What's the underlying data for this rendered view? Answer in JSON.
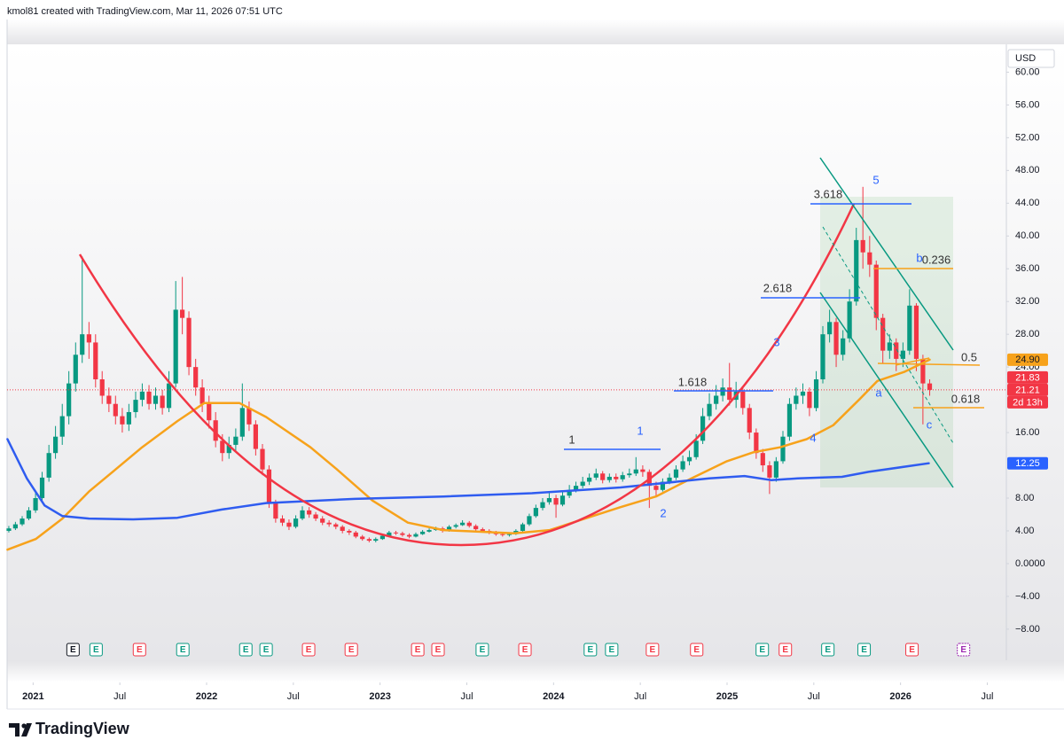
{
  "header": {
    "credit": "kmol81 created with TradingView.com, Mar 11, 2026 07:51 UTC"
  },
  "chart_data": {
    "type": "candlestick",
    "currency": "USD",
    "up_color": "#089981",
    "down_color": "#f23645",
    "xlim": [
      2020.85,
      2026.61
    ],
    "xticks": [
      {
        "value": 2021,
        "label": "2021"
      },
      {
        "value": 2021.5,
        "label": "Jul"
      },
      {
        "value": 2022,
        "label": "2022"
      },
      {
        "value": 2022.5,
        "label": "Jul"
      },
      {
        "value": 2023,
        "label": "2023"
      },
      {
        "value": 2023.5,
        "label": "Jul"
      },
      {
        "value": 2024,
        "label": "2024"
      },
      {
        "value": 2024.5,
        "label": "Jul"
      },
      {
        "value": 2025,
        "label": "2025"
      },
      {
        "value": 2025.5,
        "label": "Jul"
      },
      {
        "value": 2026,
        "label": "2026"
      },
      {
        "value": 2026.5,
        "label": "Jul"
      }
    ],
    "ylim": [
      -11.8,
      63.4
    ],
    "yticks": [
      {
        "value": 60,
        "label": "60.00"
      },
      {
        "value": 56,
        "label": "56.00"
      },
      {
        "value": 52,
        "label": "52.00"
      },
      {
        "value": 48,
        "label": "48.00"
      },
      {
        "value": 44,
        "label": "44.00"
      },
      {
        "value": 40,
        "label": "40.00"
      },
      {
        "value": 36,
        "label": "36.00"
      },
      {
        "value": 32,
        "label": "32.00"
      },
      {
        "value": 28,
        "label": "28.00"
      },
      {
        "value": 24,
        "label": "24.00"
      },
      {
        "value": 16,
        "label": "16.00"
      },
      {
        "value": 8,
        "label": "8.00"
      },
      {
        "value": 4,
        "label": "4.00"
      },
      {
        "value": 0,
        "label": "0.0000"
      },
      {
        "value": -4,
        "label": "−4.00"
      },
      {
        "value": -8,
        "label": "−8.00"
      }
    ],
    "x": [
      2020.86,
      2020.898,
      2020.937,
      2020.975,
      2021.014,
      2021.052,
      2021.091,
      2021.129,
      2021.168,
      2021.206,
      2021.245,
      2021.283,
      2021.322,
      2021.36,
      2021.398,
      2021.437,
      2021.475,
      2021.514,
      2021.552,
      2021.591,
      2021.629,
      2021.668,
      2021.706,
      2021.745,
      2021.783,
      2021.822,
      2021.86,
      2021.898,
      2021.937,
      2021.975,
      2022.014,
      2022.052,
      2022.091,
      2022.129,
      2022.168,
      2022.206,
      2022.245,
      2022.283,
      2022.322,
      2022.36,
      2022.398,
      2022.437,
      2022.475,
      2022.514,
      2022.552,
      2022.591,
      2022.629,
      2022.668,
      2022.706,
      2022.745,
      2022.783,
      2022.822,
      2022.86,
      2022.898,
      2022.937,
      2022.975,
      2023.014,
      2023.052,
      2023.091,
      2023.129,
      2023.168,
      2023.206,
      2023.245,
      2023.283,
      2023.322,
      2023.36,
      2023.398,
      2023.437,
      2023.475,
      2023.514,
      2023.552,
      2023.591,
      2023.629,
      2023.668,
      2023.706,
      2023.745,
      2023.783,
      2023.822,
      2023.86,
      2023.898,
      2023.937,
      2023.975,
      2024.014,
      2024.052,
      2024.091,
      2024.129,
      2024.168,
      2024.206,
      2024.245,
      2024.283,
      2024.322,
      2024.36,
      2024.398,
      2024.437,
      2024.475,
      2024.514,
      2024.552,
      2024.591,
      2024.629,
      2024.668,
      2024.706,
      2024.745,
      2024.783,
      2024.822,
      2024.86,
      2024.898,
      2024.937,
      2024.975,
      2025.014,
      2025.052,
      2025.091,
      2025.129,
      2025.168,
      2025.206,
      2025.245,
      2025.283,
      2025.322,
      2025.36,
      2025.398,
      2025.437,
      2025.475,
      2025.514,
      2025.552,
      2025.591,
      2025.629,
      2025.668,
      2025.706,
      2025.745,
      2025.783,
      2025.822,
      2025.86,
      2025.898,
      2025.937,
      2025.975,
      2026.014,
      2026.052,
      2026.091,
      2026.129,
      2026.168
    ],
    "open": [
      4.0,
      4.3,
      4.8,
      5.5,
      6.5,
      8.0,
      10.5,
      13.5,
      15.5,
      18.0,
      22.0,
      25.5,
      28.0,
      27.0,
      22.5,
      20.5,
      19.5,
      18.0,
      17.0,
      18.5,
      20.0,
      21.0,
      19.5,
      20.5,
      19.0,
      22.0,
      31.0,
      30.0,
      24.0,
      21.5,
      19.5,
      17.5,
      15.0,
      13.5,
      14.5,
      15.5,
      19.0,
      17.0,
      14.0,
      11.5,
      7.5,
      5.5,
      5.0,
      4.5,
      5.5,
      6.5,
      6.0,
      5.5,
      5.0,
      4.8,
      4.5,
      4.0,
      3.8,
      3.3,
      3.0,
      2.8,
      3.0,
      3.4,
      3.8,
      3.7,
      3.5,
      3.3,
      3.6,
      3.9,
      4.1,
      4.3,
      4.0,
      4.5,
      4.7,
      5.0,
      4.6,
      4.2,
      4.0,
      3.8,
      3.6,
      3.5,
      3.6,
      4.0,
      4.8,
      5.8,
      6.8,
      7.5,
      8.0,
      7.2,
      8.3,
      9.0,
      9.5,
      10.0,
      10.5,
      11.0,
      10.2,
      10.6,
      10.3,
      10.8,
      11.0,
      11.5,
      11.2,
      9.5,
      9.0,
      10.0,
      10.5,
      11.5,
      12.5,
      13.0,
      15.0,
      18.0,
      19.5,
      20.5,
      21.5,
      20.0,
      21.0,
      19.0,
      16.0,
      13.5,
      12.0,
      10.5,
      12.5,
      15.5,
      19.5,
      20.5,
      21.0,
      19.0,
      22.5,
      28.0,
      29.5,
      25.5,
      27.5,
      32.0,
      39.5,
      38.0,
      36.5,
      30.0,
      26.0,
      27.0,
      25.0,
      26.0,
      31.5,
      25.0,
      22.0
    ],
    "high": [
      4.6,
      5.1,
      5.8,
      6.9,
      8.6,
      11.2,
      14.5,
      16.8,
      19.5,
      23.5,
      27.0,
      37.5,
      29.5,
      28.0,
      23.5,
      21.5,
      20.5,
      19.0,
      19.5,
      21.0,
      22.0,
      21.8,
      21.5,
      21.2,
      23.5,
      34.5,
      35.0,
      30.8,
      25.0,
      22.5,
      20.5,
      18.5,
      15.8,
      15.5,
      16.5,
      22.0,
      19.8,
      17.5,
      14.6,
      12.0,
      7.8,
      5.9,
      5.4,
      5.9,
      7.0,
      6.9,
      6.3,
      5.8,
      5.3,
      5.0,
      4.7,
      4.2,
      4.0,
      3.5,
      3.2,
      3.2,
      3.6,
      4.0,
      4.0,
      3.9,
      3.7,
      3.8,
      4.1,
      4.3,
      4.5,
      4.5,
      4.7,
      4.9,
      5.3,
      5.2,
      4.8,
      4.4,
      4.2,
      4.0,
      3.8,
      3.8,
      4.2,
      5.0,
      6.1,
      7.2,
      8.0,
      8.6,
      8.4,
      8.8,
      9.6,
      10.0,
      10.6,
      11.0,
      11.6,
      11.3,
      11.0,
      11.0,
      11.2,
      11.6,
      13.0,
      12.0,
      11.5,
      10.0,
      10.4,
      11.0,
      12.0,
      13.2,
      13.8,
      15.8,
      19.0,
      20.8,
      21.8,
      22.6,
      24.5,
      22.2,
      21.6,
      19.5,
      16.5,
      14.0,
      12.5,
      13.0,
      16.2,
      20.2,
      21.5,
      22.0,
      21.5,
      23.5,
      29.0,
      31.0,
      30.0,
      28.5,
      33.5,
      41.0,
      46.0,
      40.0,
      37.0,
      30.5,
      28.0,
      27.5,
      27.0,
      33.5,
      31.8,
      25.5,
      22.5
    ],
    "low": [
      3.8,
      4.1,
      4.6,
      5.3,
      6.2,
      7.6,
      10.0,
      12.8,
      14.5,
      17.0,
      21.0,
      24.5,
      25.0,
      21.5,
      19.5,
      18.5,
      17.0,
      16.0,
      16.2,
      17.8,
      19.2,
      18.8,
      18.8,
      18.2,
      18.5,
      21.5,
      28.0,
      23.0,
      20.5,
      18.5,
      16.5,
      14.2,
      12.5,
      12.8,
      13.8,
      15.0,
      16.2,
      13.2,
      10.8,
      6.8,
      5.0,
      4.6,
      4.1,
      4.3,
      5.3,
      5.6,
      5.2,
      4.7,
      4.5,
      4.2,
      3.7,
      3.5,
      3.1,
      2.8,
      2.6,
      2.6,
      2.9,
      3.3,
      3.5,
      3.3,
      3.1,
      3.2,
      3.5,
      3.8,
      4.0,
      3.8,
      3.9,
      4.3,
      4.6,
      4.4,
      4.0,
      3.8,
      3.6,
      3.4,
      3.3,
      3.3,
      3.5,
      3.9,
      4.6,
      5.6,
      6.5,
      7.2,
      5.6,
      7.0,
      8.0,
      8.7,
      9.2,
      9.6,
      10.2,
      9.8,
      9.9,
      9.9,
      10.0,
      10.5,
      10.7,
      10.6,
      6.8,
      8.3,
      8.8,
      9.7,
      10.2,
      11.2,
      12.0,
      12.7,
      14.6,
      17.5,
      18.8,
      19.8,
      19.3,
      19.0,
      18.2,
      15.2,
      12.8,
      11.2,
      8.5,
      10.0,
      12.2,
      15.0,
      18.8,
      19.5,
      18.0,
      18.6,
      22.0,
      27.0,
      24.0,
      24.8,
      27.0,
      31.5,
      36.0,
      35.0,
      28.5,
      24.5,
      25.0,
      23.5,
      24.0,
      25.5,
      23.5,
      17.0,
      20.5
    ],
    "close": [
      4.3,
      4.8,
      5.5,
      6.5,
      8.0,
      10.5,
      13.5,
      15.5,
      18.0,
      22.0,
      25.5,
      28.0,
      27.0,
      22.5,
      20.5,
      19.5,
      18.0,
      17.0,
      18.5,
      20.0,
      21.0,
      19.5,
      20.5,
      19.0,
      22.0,
      31.0,
      30.0,
      24.0,
      21.5,
      19.5,
      17.5,
      15.0,
      13.5,
      14.5,
      15.5,
      19.0,
      17.0,
      14.0,
      11.5,
      7.5,
      5.5,
      5.0,
      4.5,
      5.5,
      6.5,
      6.0,
      5.5,
      5.0,
      4.8,
      4.5,
      4.0,
      3.8,
      3.3,
      3.0,
      2.8,
      3.0,
      3.4,
      3.8,
      3.7,
      3.5,
      3.3,
      3.6,
      3.9,
      4.1,
      4.3,
      4.0,
      4.5,
      4.7,
      5.0,
      4.6,
      4.2,
      4.0,
      3.8,
      3.6,
      3.5,
      3.6,
      4.0,
      4.8,
      5.8,
      6.8,
      7.5,
      8.0,
      7.2,
      8.3,
      9.0,
      9.5,
      10.0,
      10.5,
      11.0,
      10.2,
      10.6,
      10.3,
      10.8,
      11.0,
      11.5,
      11.2,
      9.5,
      9.0,
      10.0,
      10.5,
      11.5,
      12.5,
      13.0,
      15.0,
      18.0,
      19.5,
      20.5,
      21.5,
      20.0,
      21.0,
      19.0,
      16.0,
      13.5,
      12.0,
      10.5,
      12.5,
      15.5,
      19.5,
      20.5,
      21.0,
      19.0,
      22.5,
      28.0,
      29.5,
      25.5,
      27.5,
      32.0,
      39.5,
      38.0,
      36.5,
      30.0,
      26.0,
      27.0,
      25.0,
      26.0,
      31.5,
      25.0,
      22.0,
      21.21
    ],
    "overlays": [
      {
        "color": "#f7a21b",
        "x": [
          2020.852,
          2021.015,
          2021.169,
          2021.322,
          2021.475,
          2021.628,
          2021.832,
          2021.986,
          2022.19,
          2022.343,
          2022.599,
          2022.752,
          2022.956,
          2023.16,
          2023.365,
          2023.569,
          2023.773,
          2023.978,
          2024.182,
          2024.386,
          2024.59,
          2024.795,
          2024.999,
          2025.152,
          2025.305,
          2025.459,
          2025.612,
          2025.765,
          2025.867,
          2026.02,
          2026.168
        ],
        "values": [
          1.7,
          3.0,
          5.5,
          8.8,
          11.5,
          14.2,
          17.4,
          19.6,
          19.6,
          17.9,
          14.2,
          11.5,
          7.7,
          5.0,
          4.1,
          3.9,
          3.7,
          4.1,
          5.5,
          6.9,
          8.2,
          10.4,
          12.5,
          13.6,
          14.2,
          15.2,
          16.9,
          20.1,
          22.3,
          23.4,
          24.9
        ]
      },
      {
        "color": "#2f5cf0",
        "x": [
          2020.852,
          2020.964,
          2021.066,
          2021.169,
          2021.322,
          2021.577,
          2021.832,
          2022.088,
          2022.343,
          2022.854,
          2023.365,
          2023.875,
          2024.386,
          2024.897,
          2025.101,
          2025.254,
          2025.408,
          2025.663,
          2025.816,
          2026.163
        ],
        "values": [
          15.2,
          10.4,
          7.1,
          5.8,
          5.5,
          5.4,
          5.6,
          6.6,
          7.4,
          7.9,
          8.2,
          8.6,
          9.3,
          10.4,
          10.7,
          10.2,
          10.4,
          10.6,
          11.2,
          12.25
        ]
      }
    ],
    "price_labels": [
      {
        "value": 24.9,
        "label": "24.90",
        "color": "#f7a21b"
      },
      {
        "value": 21.83,
        "label": "21.83",
        "color": "#f23645"
      },
      {
        "value": 21.21,
        "label": "21.21",
        "color": "#f23645"
      },
      {
        "value": 12.25,
        "label": "12.25",
        "color": "#2962ff"
      }
    ],
    "countdown": "2d 13h",
    "earnings": {
      "label": "E",
      "x": [
        2021.23,
        2021.363,
        2021.613,
        2021.863,
        2022.226,
        2022.343,
        2022.588,
        2022.834,
        2023.217,
        2023.334,
        2023.589,
        2023.835,
        2024.212,
        2024.335,
        2024.57,
        2024.825,
        2025.203,
        2025.336,
        2025.581,
        2025.79,
        2026.066,
        2026.363
      ],
      "colors": [
        "#131722",
        "#089981",
        "#f23645",
        "#089981",
        "#089981",
        "#089981",
        "#f23645",
        "#f23645",
        "#f23645",
        "#f23645",
        "#089981",
        "#f23645",
        "#089981",
        "#089981",
        "#f23645",
        "#f23645",
        "#089981",
        "#f23645",
        "#089981",
        "#089981",
        "#f23645",
        "#9c27b0"
      ]
    },
    "annotations": [
      "1",
      "1",
      "2",
      "1.618",
      "3",
      "2.618",
      "4",
      "3.618",
      "5",
      "b",
      "0.236",
      "0.5",
      "a",
      "0.618",
      "c"
    ]
  },
  "footer": {
    "brand": "TradingView"
  }
}
